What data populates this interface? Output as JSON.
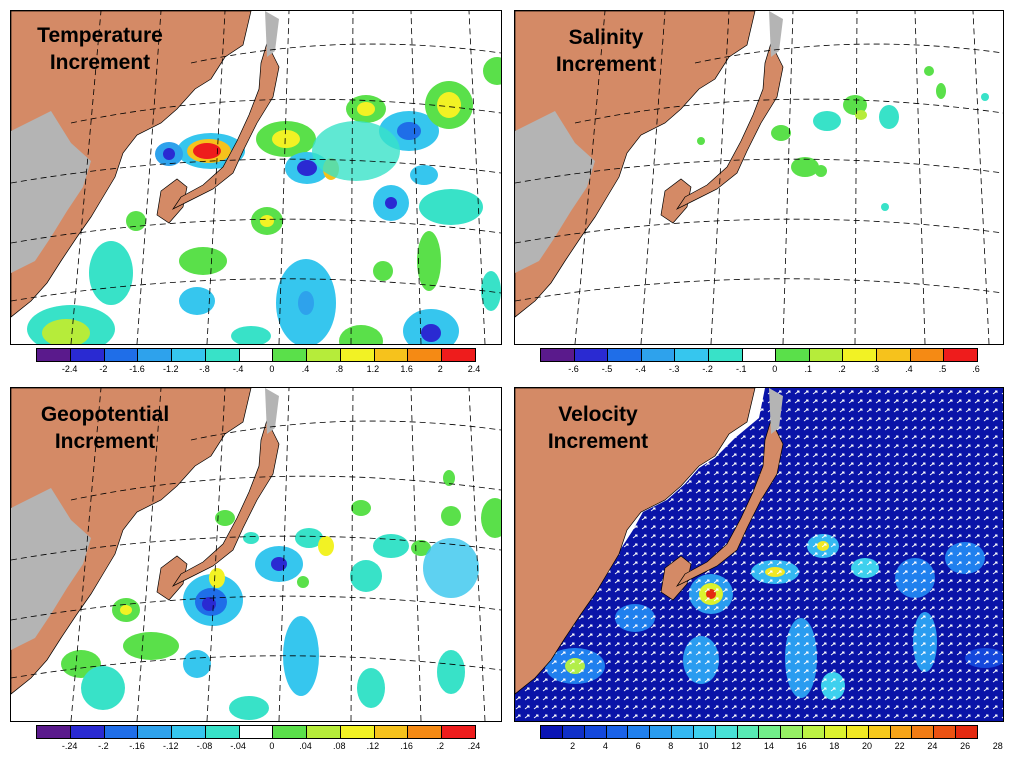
{
  "panels": [
    {
      "id": "temperature",
      "title_line1": "Temperature",
      "title_line2": "Increment",
      "palette": [
        "#5a1a8c",
        "#2a2ad2",
        "#1f6ee8",
        "#2ea2ec",
        "#36c6ee",
        "#38e2c8",
        "#ffffff",
        "#5ae04a",
        "#b6ec3a",
        "#f2f224",
        "#f6c21c",
        "#f58a14",
        "#ee1c1c"
      ],
      "tick_labels": [
        "-2.4",
        "-2",
        "-1.6",
        "-1.2",
        "-.8",
        "-.4",
        "0",
        ".4",
        ".8",
        "1.2",
        "1.6",
        "2",
        "2.4"
      ],
      "tick_mode": "boundary"
    },
    {
      "id": "salinity",
      "title_line1": "Salinity",
      "title_line2": "Increment",
      "palette": [
        "#5a1a8c",
        "#2a2ad2",
        "#1f6ee8",
        "#2ea2ec",
        "#36c6ee",
        "#38e2c8",
        "#ffffff",
        "#5ae04a",
        "#b6ec3a",
        "#f2f224",
        "#f6c21c",
        "#f58a14",
        "#ee1c1c"
      ],
      "tick_labels": [
        "-.6",
        "-.5",
        "-.4",
        "-.3",
        "-.2",
        "-.1",
        "0",
        ".1",
        ".2",
        ".3",
        ".4",
        ".5",
        ".6"
      ],
      "tick_mode": "boundary"
    },
    {
      "id": "geopotential",
      "title_line1": "Geopotential",
      "title_line2": "Increment",
      "palette": [
        "#5a1a8c",
        "#2a2ad2",
        "#1f6ee8",
        "#2ea2ec",
        "#36c6ee",
        "#38e2c8",
        "#ffffff",
        "#5ae04a",
        "#b6ec3a",
        "#f2f224",
        "#f6c21c",
        "#f58a14",
        "#ee1c1c"
      ],
      "tick_labels": [
        "-.24",
        "-.2",
        "-.16",
        "-.12",
        "-.08",
        "-.04",
        "0",
        ".04",
        ".08",
        ".12",
        ".16",
        ".2",
        ".24"
      ],
      "tick_mode": "boundary"
    },
    {
      "id": "velocity",
      "title_line1": "Velocity",
      "title_line2": "Increment",
      "palette": [
        "#0a14b4",
        "#1030c8",
        "#1448dc",
        "#1a62e8",
        "#2080ee",
        "#2a9cf0",
        "#34b8f2",
        "#3ed0ee",
        "#48e2d6",
        "#58eab4",
        "#72ee8a",
        "#96f064",
        "#bcf244",
        "#dcf22e",
        "#f2e824",
        "#f6c81c",
        "#f6a418",
        "#f27c14",
        "#ec5212",
        "#e42a10"
      ],
      "tick_labels": [
        "2",
        "4",
        "6",
        "8",
        "10",
        "12",
        "14",
        "16",
        "18",
        "20",
        "22",
        "24",
        "26",
        "28"
      ],
      "tick_mode": "velocity"
    }
  ],
  "colors": {
    "land": "#d48a66",
    "ice": "#b4b4b4",
    "ocean": "#ffffff",
    "velocity_background": "#0a14a8",
    "grid": "#000000"
  }
}
